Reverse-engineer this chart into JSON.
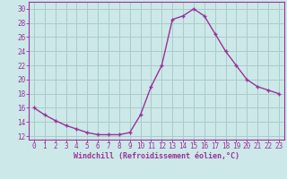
{
  "x": [
    0,
    1,
    2,
    3,
    4,
    5,
    6,
    7,
    8,
    9,
    10,
    11,
    12,
    13,
    14,
    15,
    16,
    17,
    18,
    19,
    20,
    21,
    22,
    23
  ],
  "y": [
    16,
    15,
    14.2,
    13.5,
    13,
    12.5,
    12.2,
    12.2,
    12.2,
    12.5,
    15,
    19,
    22,
    28.5,
    29,
    30,
    29,
    26.5,
    24,
    22,
    20,
    19,
    18.5,
    18
  ],
  "line_color": "#993399",
  "marker_color": "#993399",
  "bg_color": "#cce8e8",
  "grid_color": "#aacccc",
  "xlabel": "Windchill (Refroidissement éolien,°C)",
  "xlabel_color": "#993399",
  "tick_color": "#993399",
  "spine_color": "#993399",
  "xlim": [
    -0.5,
    23.5
  ],
  "ylim": [
    11.5,
    31
  ],
  "yticks": [
    12,
    14,
    16,
    18,
    20,
    22,
    24,
    26,
    28,
    30
  ],
  "xticks": [
    0,
    1,
    2,
    3,
    4,
    5,
    6,
    7,
    8,
    9,
    10,
    11,
    12,
    13,
    14,
    15,
    16,
    17,
    18,
    19,
    20,
    21,
    22,
    23
  ],
  "xlabel_fontsize": 6.0,
  "tick_fontsize": 5.5
}
